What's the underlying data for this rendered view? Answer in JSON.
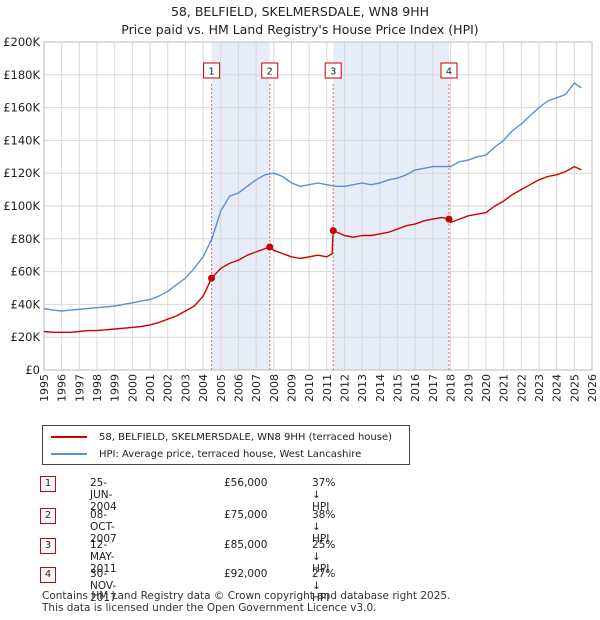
{
  "title_line1": "58, BELFIELD, SKELMERSDALE, WN8 9HH",
  "title_line2": "Price paid vs. HM Land Registry's House Price Index (HPI)",
  "chart_data": {
    "type": "line",
    "xlim": [
      1995,
      2026
    ],
    "ylim": [
      0,
      200000
    ],
    "x_ticks": [
      1995,
      1996,
      1997,
      1998,
      1999,
      2000,
      2001,
      2002,
      2003,
      2004,
      2005,
      2006,
      2007,
      2008,
      2009,
      2010,
      2011,
      2012,
      2013,
      2014,
      2015,
      2016,
      2017,
      2018,
      2019,
      2020,
      2021,
      2022,
      2023,
      2024,
      2025,
      2026
    ],
    "y_ticks": [
      0,
      20000,
      40000,
      60000,
      80000,
      100000,
      120000,
      140000,
      160000,
      180000,
      200000
    ],
    "y_tick_labels": [
      "£0",
      "£20K",
      "£40K",
      "£60K",
      "£80K",
      "£100K",
      "£120K",
      "£140K",
      "£160K",
      "£180K",
      "£200K"
    ],
    "grid": true,
    "shaded_periods": [
      [
        2004.48,
        2007.77
      ],
      [
        2011.36,
        2017.91
      ]
    ],
    "series": [
      {
        "name": "HPI: Average price, terraced house, West Lancashire",
        "color": "#5b8fd0",
        "x": [
          1995,
          1995.5,
          1996,
          1996.5,
          1997,
          1997.5,
          1998,
          1998.5,
          1999,
          1999.5,
          2000,
          2000.5,
          2001,
          2001.5,
          2002,
          2002.5,
          2003,
          2003.5,
          2004,
          2004.5,
          2005,
          2005.5,
          2006,
          2006.5,
          2007,
          2007.5,
          2008,
          2008.5,
          2009,
          2009.5,
          2010,
          2010.5,
          2011,
          2011.5,
          2012,
          2012.5,
          2013,
          2013.5,
          2014,
          2014.5,
          2015,
          2015.5,
          2016,
          2016.5,
          2017,
          2017.5,
          2018,
          2018.5,
          2019,
          2019.5,
          2020,
          2020.5,
          2021,
          2021.5,
          2022,
          2022.5,
          2023,
          2023.5,
          2024,
          2024.5,
          2025,
          2025.4
        ],
        "y": [
          37500,
          36500,
          36000,
          36500,
          37000,
          37500,
          38000,
          38500,
          39000,
          40000,
          41000,
          42000,
          43000,
          45000,
          48000,
          52000,
          56000,
          62000,
          69000,
          80000,
          97000,
          106000,
          108000,
          112000,
          116000,
          119000,
          120000,
          118000,
          114000,
          112000,
          113000,
          114000,
          113000,
          112000,
          112000,
          113000,
          114000,
          113000,
          114000,
          116000,
          117000,
          119000,
          122000,
          123000,
          124000,
          124000,
          124000,
          127000,
          128000,
          130000,
          131000,
          136000,
          140000,
          146000,
          150000,
          155000,
          160000,
          164000,
          166000,
          168000,
          175000,
          172000
        ]
      },
      {
        "name": "58, BELFIELD, SKELMERSDALE, WN8 9HH (terraced house)",
        "color": "#cc0000",
        "x": [
          1995,
          1995.5,
          1996,
          1996.5,
          1997,
          1997.5,
          1998,
          1998.5,
          1999,
          1999.5,
          2000,
          2000.5,
          2001,
          2001.5,
          2002,
          2002.5,
          2003,
          2003.5,
          2004,
          2004.48,
          2005,
          2005.5,
          2006,
          2006.5,
          2007,
          2007.5,
          2007.77,
          2008,
          2008.5,
          2009,
          2009.5,
          2010,
          2010.5,
          2011,
          2011.3,
          2011.36,
          2012,
          2012.5,
          2013,
          2013.5,
          2014,
          2014.5,
          2015,
          2015.5,
          2016,
          2016.5,
          2017,
          2017.5,
          2017.91,
          2018,
          2018.5,
          2019,
          2019.5,
          2020,
          2020.5,
          2021,
          2021.5,
          2022,
          2022.5,
          2023,
          2023.5,
          2024,
          2024.5,
          2025,
          2025.4
        ],
        "y": [
          23500,
          23000,
          23000,
          23000,
          23500,
          24000,
          24000,
          24500,
          25000,
          25500,
          26000,
          26500,
          27500,
          29000,
          31000,
          33000,
          36000,
          39000,
          45000,
          56000,
          62000,
          65000,
          67000,
          70000,
          72000,
          74000,
          75000,
          73000,
          71000,
          69000,
          68000,
          69000,
          70000,
          69000,
          71000,
          85000,
          82000,
          81000,
          82000,
          82000,
          83000,
          84000,
          86000,
          88000,
          89000,
          91000,
          92000,
          93000,
          92000,
          90000,
          92000,
          94000,
          95000,
          96000,
          100000,
          103000,
          107000,
          110000,
          113000,
          116000,
          118000,
          119000,
          121000,
          124000,
          122000
        ]
      }
    ],
    "sales": [
      {
        "num": "1",
        "x": 2004.48,
        "y": 56000
      },
      {
        "num": "2",
        "x": 2007.77,
        "y": 75000
      },
      {
        "num": "3",
        "x": 2011.36,
        "y": 85000
      },
      {
        "num": "4",
        "x": 2017.91,
        "y": 92000
      }
    ]
  },
  "legend": {
    "item1": "58, BELFIELD, SKELMERSDALE, WN8 9HH (terraced house)",
    "item2": "HPI: Average price, terraced house, West Lancashire",
    "color1": "#cc0000",
    "color2": "#5b8fd0"
  },
  "transactions": [
    {
      "num": "1",
      "date": "25-JUN-2004",
      "price": "£56,000",
      "hpi": "37% ↓ HPI"
    },
    {
      "num": "2",
      "date": "08-OCT-2007",
      "price": "£75,000",
      "hpi": "38% ↓ HPI"
    },
    {
      "num": "3",
      "date": "12-MAY-2011",
      "price": "£85,000",
      "hpi": "25% ↓ HPI"
    },
    {
      "num": "4",
      "date": "30-NOV-2017",
      "price": "£92,000",
      "hpi": "27% ↓ HPI"
    }
  ],
  "footer_line1": "Contains HM Land Registry data © Crown copyright and database right 2025.",
  "footer_line2": "This data is licensed under the Open Government Licence v3.0."
}
